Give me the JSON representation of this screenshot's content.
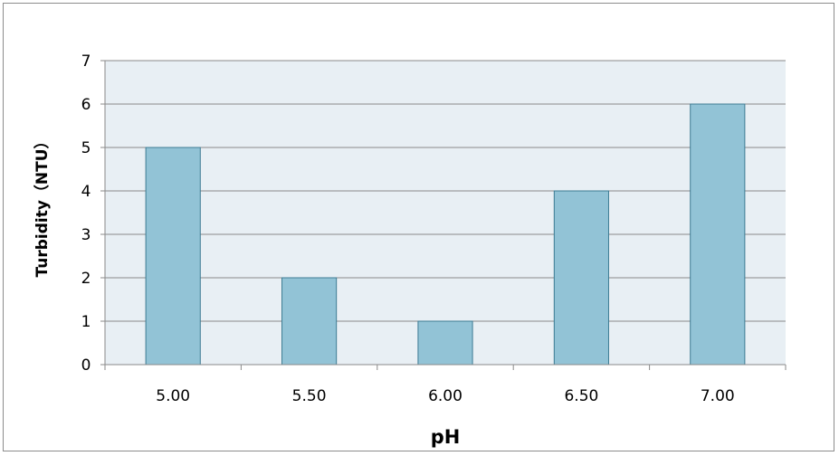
{
  "chart_data": {
    "type": "bar",
    "title": "",
    "xlabel": "pH",
    "ylabel": "Turbidity（NTU）",
    "categories": [
      "5.00",
      "5.50",
      "6.00",
      "6.50",
      "7.00"
    ],
    "values": [
      5,
      2,
      1,
      4,
      6
    ],
    "ylim": [
      0,
      7
    ],
    "yticks": [
      "0",
      "1",
      "2",
      "3",
      "4",
      "5",
      "6",
      "7"
    ],
    "grid": true,
    "legend": "none",
    "colors": {
      "bar_fill": "#92c3d6",
      "bar_stroke": "#3d7b93",
      "plot_background": "#e8eff4",
      "gridline": "#8a8a8a",
      "axis": "#8a8a8a"
    }
  }
}
